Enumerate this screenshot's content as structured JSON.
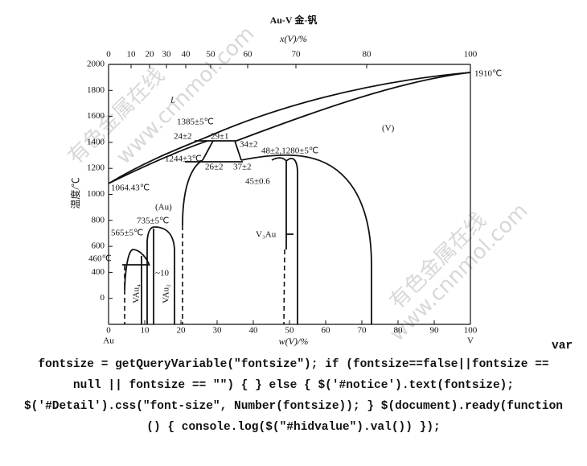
{
  "figure": {
    "title": "Au-V  金-钒",
    "top_axis": {
      "label": "x(V)/%",
      "ticks": [
        "0",
        "10",
        "20",
        "30",
        "40",
        "50",
        "60",
        "70",
        "80",
        "100"
      ]
    },
    "y_axis": {
      "label": "温度/℃",
      "ticks": [
        "2000",
        "1800",
        "1600",
        "1400",
        "1200",
        "1000",
        "800",
        "600",
        "400",
        "0"
      ]
    },
    "bottom_axis": {
      "label": "w(V)/%",
      "ticks": [
        "0",
        "10",
        "20",
        "30",
        "40",
        "50",
        "60",
        "70",
        "80",
        "90",
        "100"
      ],
      "left_end": "Au",
      "right_end": "V"
    },
    "annotations": [
      "1910℃",
      "L",
      "1385±5℃",
      "24±2",
      "29±1",
      "34±2",
      "(V)",
      "48±2,1280±5℃",
      "1244±3℃",
      "26±2",
      "37±2",
      "45±0.6",
      "1064.43℃",
      "(Au)",
      "735±5℃",
      "565±5℃",
      "V₃Au",
      "460℃",
      "~10",
      "VAu₄",
      "VAu₂"
    ],
    "watermarks": [
      "有色金属在线",
      "www.cnnmol.com",
      "有色金属在线",
      "www.cnnmol.com"
    ]
  },
  "code_text": [
    "var",
    "fontsize = getQueryVariable(\"fontsize\"); if (fontsize==false||fontsize ==",
    "null || fontsize == \"\") { } else { $('#notice').text(fontsize);",
    "$('#Detail').css(\"font-size\", Number(fontsize)); } $(document).ready(function",
    "() { console.log($(\"#hidvalue\").val()) });"
  ]
}
